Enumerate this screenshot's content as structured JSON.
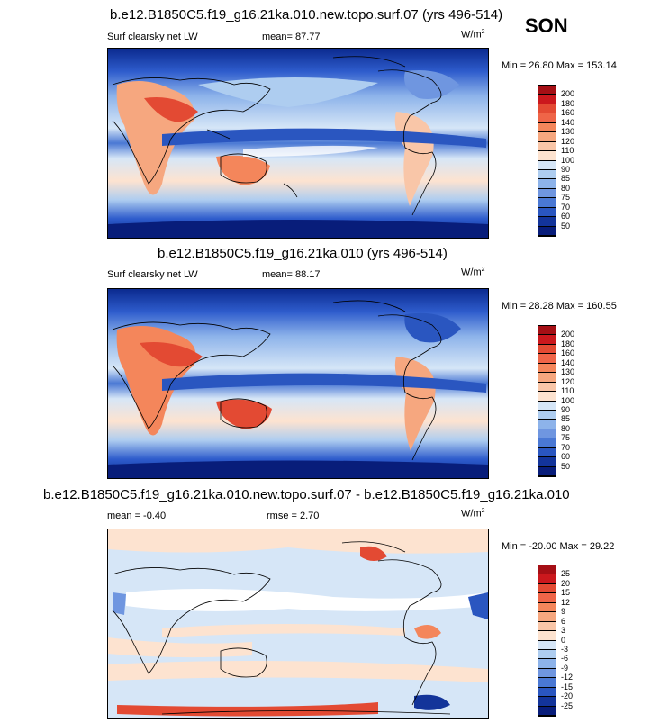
{
  "season": "SON",
  "units_base": "W/m",
  "units_exp": "2",
  "panels": [
    {
      "title": "b.e12.B1850C5.f19_g16.21ka.010.new.topo.surf.07 (yrs 496-514)",
      "left_label": "Surf clearsky net LW",
      "mean_text": "mean=  87.77",
      "rmse_text": "",
      "minmax": "Min =  26.80 Max = 153.14",
      "colorbar": {
        "labels": [
          "200",
          "180",
          "160",
          "140",
          "130",
          "120",
          "110",
          "100",
          "90",
          "85",
          "80",
          "75",
          "70",
          "60",
          "50"
        ],
        "colors": [
          "#a50f15",
          "#cb181d",
          "#e34a33",
          "#ef6548",
          "#f4865b",
          "#f6a77f",
          "#f9c6a8",
          "#fde3d0",
          "#d6e6f7",
          "#aecdf0",
          "#8db3ea",
          "#6f96e0",
          "#4a78d4",
          "#2a56c0",
          "#13349a",
          "#081d7a"
        ]
      }
    },
    {
      "title": "b.e12.B1850C5.f19_g16.21ka.010 (yrs 496-514)",
      "left_label": "Surf clearsky net LW",
      "mean_text": "mean=  88.17",
      "rmse_text": "",
      "minmax": "Min =  28.28 Max = 160.55",
      "colorbar": {
        "labels": [
          "200",
          "180",
          "160",
          "140",
          "130",
          "120",
          "110",
          "100",
          "90",
          "85",
          "80",
          "75",
          "70",
          "60",
          "50"
        ],
        "colors": [
          "#a50f15",
          "#cb181d",
          "#e34a33",
          "#ef6548",
          "#f4865b",
          "#f6a77f",
          "#f9c6a8",
          "#fde3d0",
          "#d6e6f7",
          "#aecdf0",
          "#8db3ea",
          "#6f96e0",
          "#4a78d4",
          "#2a56c0",
          "#13349a",
          "#081d7a"
        ]
      }
    },
    {
      "title": "b.e12.B1850C5.f19_g16.21ka.010.new.topo.surf.07 - b.e12.B1850C5.f19_g16.21ka.010",
      "left_label": "mean =  -0.40",
      "mean_text": "",
      "rmse_text": "rmse =   2.70",
      "minmax": "Min = -20.00 Max =  29.22",
      "colorbar": {
        "labels": [
          "25",
          "20",
          "15",
          "12",
          "9",
          "6",
          "3",
          "0",
          "-3",
          "-6",
          "-9",
          "-12",
          "-15",
          "-20",
          "-25"
        ],
        "colors": [
          "#a50f15",
          "#cb181d",
          "#e34a33",
          "#ef6548",
          "#f4865b",
          "#f6a77f",
          "#f9c6a8",
          "#fde3d0",
          "#d6e6f7",
          "#aecdf0",
          "#8db3ea",
          "#6f96e0",
          "#4a78d4",
          "#2a56c0",
          "#13349a",
          "#081d7a"
        ]
      }
    }
  ],
  "chart_data": [
    {
      "type": "heatmap",
      "title": "b.e12.B1850C5.f19_g16.21ka.010.new.topo.surf.07 (yrs 496-514)",
      "variable": "Surf clearsky net LW",
      "units": "W/m2",
      "season": "SON",
      "mean": 87.77,
      "min": 26.8,
      "max": 153.14,
      "contour_levels": [
        50,
        60,
        70,
        75,
        80,
        85,
        90,
        100,
        110,
        120,
        130,
        140,
        160,
        180,
        200
      ]
    },
    {
      "type": "heatmap",
      "title": "b.e12.B1850C5.f19_g16.21ka.010 (yrs 496-514)",
      "variable": "Surf clearsky net LW",
      "units": "W/m2",
      "season": "SON",
      "mean": 88.17,
      "min": 28.28,
      "max": 160.55,
      "contour_levels": [
        50,
        60,
        70,
        75,
        80,
        85,
        90,
        100,
        110,
        120,
        130,
        140,
        160,
        180,
        200
      ]
    },
    {
      "type": "heatmap",
      "title": "b.e12.B1850C5.f19_g16.21ka.010.new.topo.surf.07 - b.e12.B1850C5.f19_g16.21ka.010",
      "units": "W/m2",
      "season": "SON",
      "mean": -0.4,
      "rmse": 2.7,
      "min": -20.0,
      "max": 29.22,
      "contour_levels": [
        -25,
        -20,
        -15,
        -12,
        -9,
        -6,
        -3,
        0,
        3,
        6,
        9,
        12,
        15,
        20,
        25
      ]
    }
  ]
}
